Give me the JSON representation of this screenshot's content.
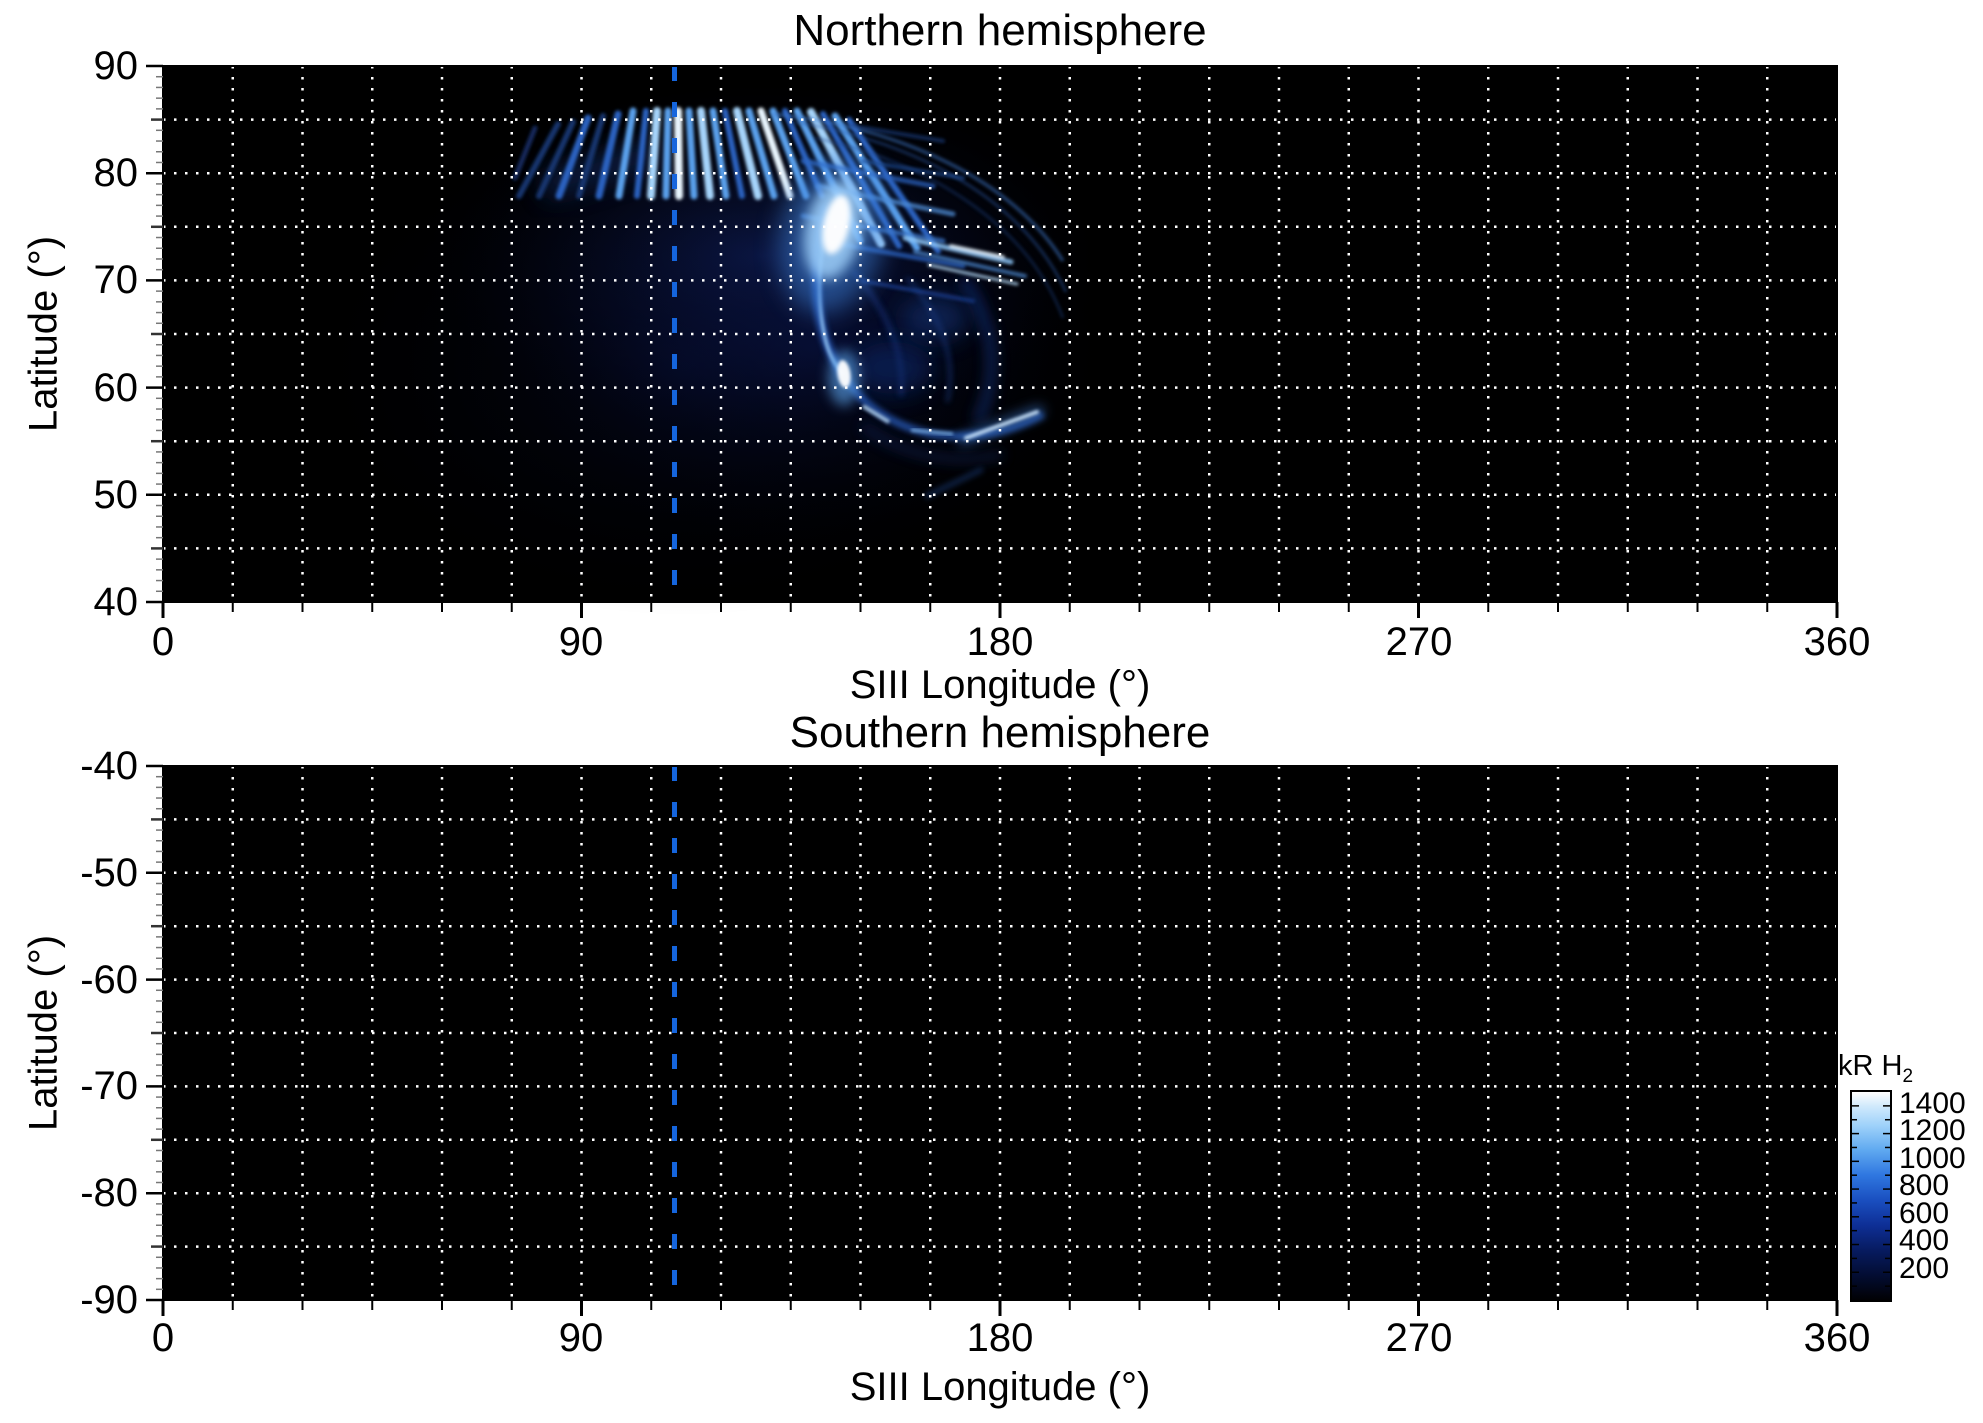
{
  "panels": {
    "north": {
      "title": "Northern hemisphere",
      "xlabel": "SIII Longitude (°)",
      "ylabel": "Latitude (°)",
      "xtick_labels": [
        "0",
        "90",
        "180",
        "270",
        "360"
      ],
      "ytick_labels": [
        "90",
        "80",
        "70",
        "60",
        "50",
        "40"
      ]
    },
    "south": {
      "title": "Southern hemisphere",
      "xlabel": "SIII Longitude (°)",
      "ylabel": "Latitude (°)",
      "xtick_labels": [
        "0",
        "90",
        "180",
        "270",
        "360"
      ],
      "ytick_labels": [
        "-40",
        "-50",
        "-60",
        "-70",
        "-80",
        "-90"
      ]
    }
  },
  "colorbar": {
    "title_main": "kR H",
    "title_sub": "2",
    "tick_labels": [
      "1400",
      "1200",
      "1000",
      "800",
      "600",
      "400",
      "200"
    ]
  },
  "chart_data": [
    {
      "type": "heatmap",
      "title": "Northern hemisphere",
      "xlabel": "SIII Longitude (°)",
      "ylabel": "Latitude (°)",
      "xlim": [
        0,
        360
      ],
      "ylim": [
        40,
        90
      ],
      "x_major_ticks": [
        0,
        90,
        180,
        270,
        360
      ],
      "x_grid_step_deg": 15,
      "y_grid_step_deg": 5,
      "grid": "white dotted, drawn over data",
      "background": "black (no emission)",
      "reference_line": {
        "orientation": "vertical",
        "style": "dashed",
        "x_deg": 110,
        "color": "#1565dd"
      },
      "features": [
        {
          "name": "diffuse emission region",
          "lon_range": [
            75,
            195
          ],
          "lat_range": [
            50,
            87
          ],
          "approx_kR": "50-200"
        },
        {
          "name": "polar streak fan",
          "lon_range": [
            85,
            150
          ],
          "lat_range": [
            79,
            86
          ],
          "approx_kR": "600-1300"
        },
        {
          "name": "brightest spot",
          "lon_deg": 145,
          "lat_deg": 75,
          "approx_kR": 1500
        },
        {
          "name": "secondary bright spot",
          "lon_deg": 147,
          "lat_deg": 61,
          "approx_kR": 1400
        },
        {
          "name": "main oval arc",
          "points_lon_lat": [
            [
              144,
              77
            ],
            [
              143,
              68
            ],
            [
              145,
              63
            ],
            [
              147,
              61
            ],
            [
              152,
              58
            ],
            [
              160,
              56
            ],
            [
              171,
              55.5
            ],
            [
              189,
              57
            ]
          ],
          "approx_kR": "300-900"
        },
        {
          "name": "dusk-side streaks",
          "lon_range": [
            160,
            185
          ],
          "lat_range": [
            70,
            74
          ],
          "approx_kR": "500-1000"
        },
        {
          "name": "low-latitude diagonal streak",
          "from_lon_lat": [
            172,
            55
          ],
          "to_lon_lat": [
            188,
            58
          ],
          "approx_kR": "600-900"
        }
      ]
    },
    {
      "type": "heatmap",
      "title": "Southern hemisphere",
      "xlabel": "SIII Longitude (°)",
      "ylabel": "Latitude (°)",
      "xlim": [
        0,
        360
      ],
      "ylim": [
        -90,
        -40
      ],
      "x_major_ticks": [
        0,
        90,
        180,
        270,
        360
      ],
      "x_grid_step_deg": 15,
      "y_grid_step_deg": 5,
      "grid": "white dotted, drawn over data",
      "background": "black",
      "reference_line": {
        "orientation": "vertical",
        "style": "dashed",
        "x_deg": 110,
        "color": "#1565dd"
      },
      "features": [],
      "note": "no emission visible"
    },
    {
      "type": "colorbar",
      "label": "kR H2",
      "range": [
        0,
        1500
      ],
      "tick_values": [
        1400,
        1200,
        1000,
        800,
        600,
        400,
        200
      ],
      "colormap_stops": [
        "#010104",
        "#040d30",
        "#081c60",
        "#10309c",
        "#1b5cd6",
        "#3d8ef0",
        "#8cc6f8",
        "#ffffff"
      ]
    }
  ]
}
